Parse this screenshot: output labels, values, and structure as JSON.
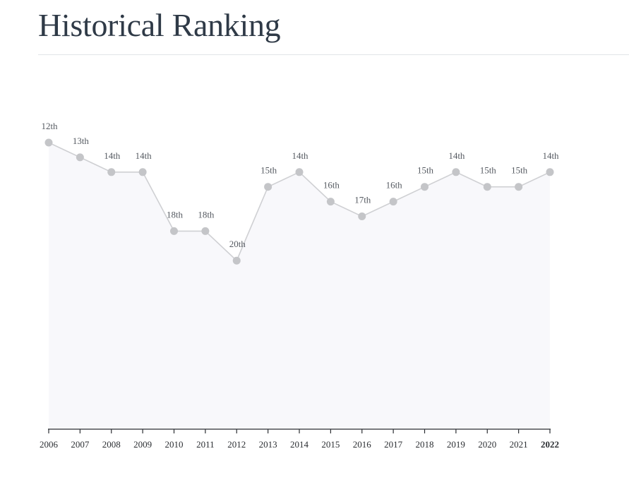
{
  "page": {
    "title": "Historical Ranking"
  },
  "chart_data": {
    "type": "line",
    "x": [
      "2006",
      "2007",
      "2008",
      "2009",
      "2010",
      "2011",
      "2012",
      "2013",
      "2014",
      "2015",
      "2016",
      "2017",
      "2018",
      "2019",
      "2020",
      "2021",
      "2022"
    ],
    "values": [
      12,
      13,
      14,
      14,
      18,
      18,
      20,
      15,
      14,
      16,
      17,
      16,
      15,
      14,
      15,
      15,
      14
    ],
    "point_labels": [
      "12th",
      "13th",
      "14th",
      "14th",
      "18th",
      "18th",
      "20th",
      "15th",
      "14th",
      "16th",
      "17th",
      "16th",
      "15th",
      "14th",
      "15th",
      "15th",
      "14th"
    ],
    "y_scale": "inverted",
    "area_fill": true,
    "grid": false,
    "colors": {
      "line": "#cfd0d3",
      "marker": "#c4c5c8",
      "area": "#f8f8fb",
      "axis": "#2c2f33"
    }
  }
}
